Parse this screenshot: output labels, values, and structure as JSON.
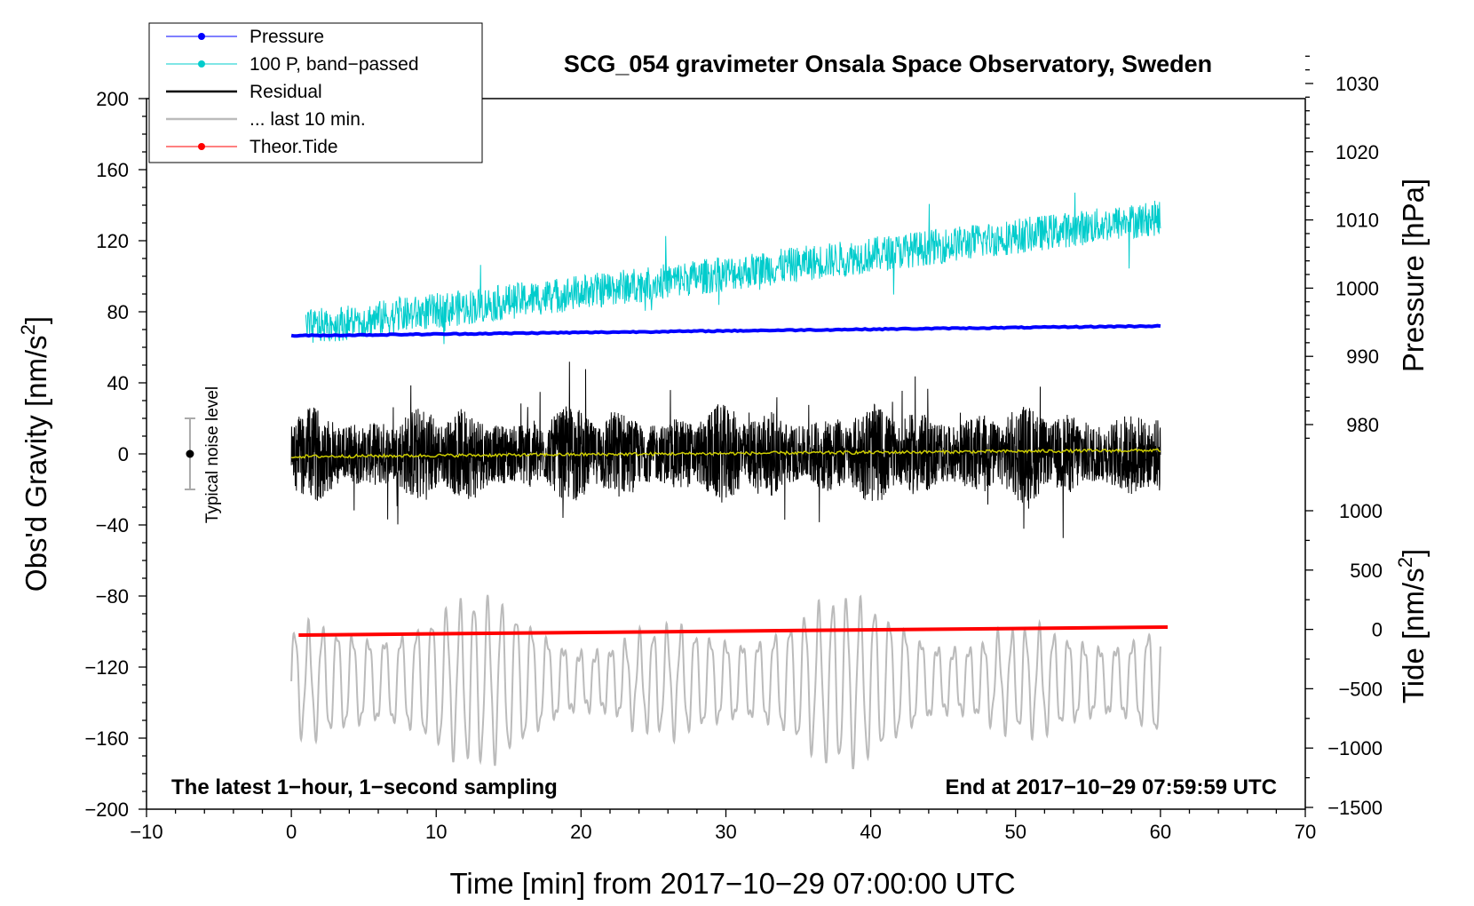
{
  "colors": {
    "pressure": "#0000ff",
    "band_passed": "#00cccc",
    "residual": "#000000",
    "residual_smooth": "#cccc00",
    "last10": "#bbbbbb",
    "tide": "#ff0000"
  },
  "chart_data": {
    "type": "line",
    "title": "SCG_054 gravimeter Onsala Space Observatory, Sweden",
    "xlabel": "Time [min] from 2017−10−29 07:00:00 UTC",
    "ylabel_left": "Obs'd Gravity [nm/s",
    "ylabel_left_sup": "2",
    "ylabel_left_end": "]",
    "ylabel_right_pressure": "Pressure [hPa]",
    "ylabel_right_tide": "Tide [nm/s",
    "ylabel_right_tide_sup": "2",
    "ylabel_right_tide_end": "]",
    "xlim": [
      -10,
      70
    ],
    "ylim_left": [
      -200,
      200
    ],
    "ylim_pressure": [
      980,
      1030
    ],
    "ylim_tide": [
      -1500,
      1000
    ],
    "x_ticks": [
      {
        "value": -10,
        "label": "−10"
      },
      {
        "value": 0,
        "label": "0"
      },
      {
        "value": 10,
        "label": "10"
      },
      {
        "value": 20,
        "label": "20"
      },
      {
        "value": 30,
        "label": "30"
      },
      {
        "value": 40,
        "label": "40"
      },
      {
        "value": 50,
        "label": "50"
      },
      {
        "value": 60,
        "label": "60"
      },
      {
        "value": 70,
        "label": "70"
      }
    ],
    "y_ticks_left": [
      {
        "value": 200,
        "label": "200"
      },
      {
        "value": 160,
        "label": "160"
      },
      {
        "value": 120,
        "label": "120"
      },
      {
        "value": 80,
        "label": "80"
      },
      {
        "value": 40,
        "label": "40"
      },
      {
        "value": 0,
        "label": "0"
      },
      {
        "value": -40,
        "label": "−40"
      },
      {
        "value": -80,
        "label": "−80"
      },
      {
        "value": -120,
        "label": "−120"
      },
      {
        "value": -160,
        "label": "−160"
      },
      {
        "value": -200,
        "label": "−200"
      }
    ],
    "y_ticks_pressure": [
      {
        "value": 1030,
        "label": "1030"
      },
      {
        "value": 1020,
        "label": "1020"
      },
      {
        "value": 1010,
        "label": "1010"
      },
      {
        "value": 1000,
        "label": "1000"
      },
      {
        "value": 990,
        "label": "990"
      },
      {
        "value": 980,
        "label": "980"
      }
    ],
    "y_ticks_tide": [
      {
        "value": 1000,
        "label": "1000"
      },
      {
        "value": 500,
        "label": "500"
      },
      {
        "value": 0,
        "label": "0"
      },
      {
        "value": -500,
        "label": "−500"
      },
      {
        "value": -1000,
        "label": "−1000"
      },
      {
        "value": -1500,
        "label": "−1500"
      }
    ],
    "legend": [
      {
        "label": "Pressure",
        "color": "#0000ff",
        "marker": true
      },
      {
        "label": "100 P, band−passed",
        "color": "#00cccc",
        "marker": true
      },
      {
        "label": "Residual",
        "color": "#000000",
        "marker": false
      },
      {
        "label": "... last 10 min.",
        "color": "#bbbbbb",
        "marker": false
      },
      {
        "label": "Theor.Tide",
        "color": "#ff0000",
        "marker": true
      }
    ],
    "legend_position": "top-left",
    "noise_label": "Typical noise level",
    "noise_bar": {
      "x": -7,
      "center": 0,
      "low": -20,
      "high": 20
    },
    "annotation_left": "The latest 1−hour, 1−second sampling",
    "annotation_right": "End at 2017−10−29 07:59:59 UTC",
    "series": [
      {
        "name": "Pressure",
        "axis": "left",
        "x_start": 0,
        "x_end": 60,
        "y_start": 66.5,
        "y_end": 72.0
      },
      {
        "name": "100 P, band-passed",
        "axis": "left",
        "x_start": 1,
        "x_end": 60,
        "y_start": 71,
        "y_end": 133,
        "noise": 10
      },
      {
        "name": "Residual",
        "axis": "left",
        "x_start": 0,
        "x_end": 60,
        "mean": 0,
        "amplitude": 28,
        "max_excursion": 62
      },
      {
        "name": "Residual smoothed",
        "axis": "left",
        "x_start": 0,
        "x_end": 60,
        "y_start": -1.5,
        "y_end": 2.0
      },
      {
        "name": "... last 10 min.",
        "axis": "left",
        "x_start": 0,
        "x_end": 60,
        "mean": -128,
        "amplitude_range": [
          12,
          45
        ]
      },
      {
        "name": "Theor.Tide",
        "axis": "left",
        "x_start": 0.5,
        "x_end": 60.5,
        "y_start": -102,
        "y_end": -97.5
      }
    ]
  }
}
